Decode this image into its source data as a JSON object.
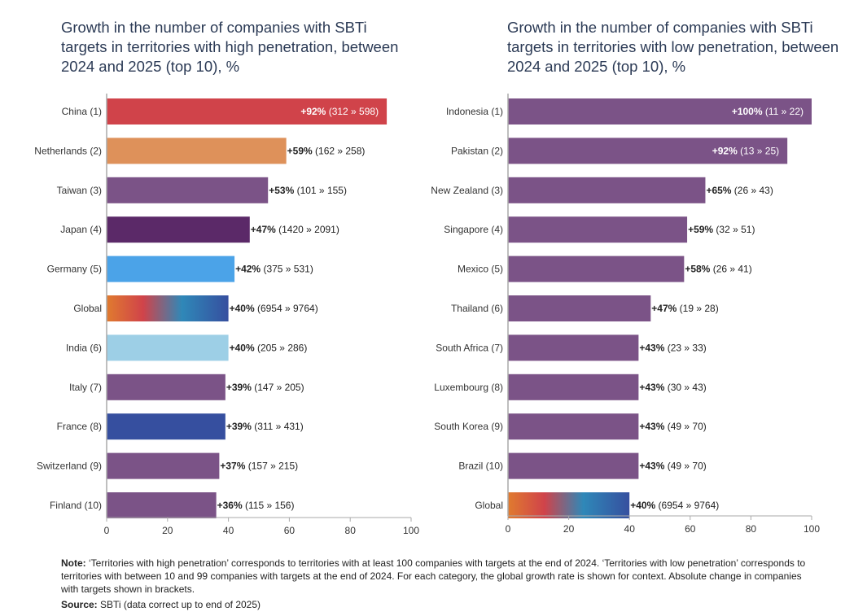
{
  "chart_data": [
    {
      "type": "bar",
      "orientation": "horizontal",
      "title": "Growth in the number of companies with SBTi targets in territories with high penetration, between 2024 and 2025 (top 10), %",
      "xlabel": "",
      "ylabel": "",
      "xlim": [
        0,
        100
      ],
      "xticks": [
        0,
        20,
        40,
        60,
        80,
        100
      ],
      "grid": false,
      "categories": [
        "China (1)",
        "Netherlands (2)",
        "Taiwan (3)",
        "Japan (4)",
        "Germany (5)",
        "Global",
        "India (6)",
        "Italy (7)",
        "France (8)",
        "Switzerland (9)",
        "Finland (10)"
      ],
      "values": [
        92,
        59,
        53,
        47,
        42,
        40,
        40,
        39,
        39,
        37,
        36
      ],
      "labels_pct": [
        "+92%",
        "+59%",
        "+53%",
        "+47%",
        "+42%",
        "+40%",
        "+40%",
        "+39%",
        "+39%",
        "+37%",
        "+36%"
      ],
      "labels_abs": [
        "(312 » 598)",
        "(162 » 258)",
        "(101 » 155)",
        "(1420 » 2091)",
        "(375 » 531)",
        "(6954 » 9764)",
        "(205 » 286)",
        "(147 » 205)",
        "(311 » 431)",
        "(157 » 215)",
        "(115 » 156)"
      ],
      "colors": [
        "#d0434a",
        "#de915a",
        "#7b5387",
        "#5b2968",
        "#4ba3e8",
        "gradient",
        "#9dcfe6",
        "#7b5387",
        "#364f9f",
        "#7b5387",
        "#7b5387"
      ],
      "label_inside": [
        true,
        false,
        false,
        false,
        false,
        false,
        false,
        false,
        false,
        false,
        false
      ]
    },
    {
      "type": "bar",
      "orientation": "horizontal",
      "title": "Growth in the number of companies with SBTi targets in territories with low penetration, between 2024 and 2025 (top 10), %",
      "xlabel": "",
      "ylabel": "",
      "xlim": [
        0,
        100
      ],
      "xticks": [
        0,
        20,
        40,
        60,
        80,
        100
      ],
      "grid": false,
      "categories": [
        "Indonesia (1)",
        "Pakistan (2)",
        "New Zealand (3)",
        "Singapore (4)",
        "Mexico (5)",
        "Thailand (6)",
        "South Africa (7)",
        "Luxembourg (8)",
        "South Korea (9)",
        "Brazil (10)",
        "Global"
      ],
      "values": [
        100,
        92,
        65,
        59,
        58,
        47,
        43,
        43,
        43,
        43,
        40
      ],
      "labels_pct": [
        "+100%",
        "+92%",
        "+65%",
        "+59%",
        "+58%",
        "+47%",
        "+43%",
        "+43%",
        "+43%",
        "+43%",
        "+40%"
      ],
      "labels_abs": [
        "(11 » 22)",
        "(13 » 25)",
        "(26 » 43)",
        "(32 » 51)",
        "(26 » 41)",
        "(19 » 28)",
        "(23 » 33)",
        "(30 » 43)",
        "(49 » 70)",
        "(49 » 70)",
        "(6954 » 9764)"
      ],
      "colors": [
        "#7b5387",
        "#7b5387",
        "#7b5387",
        "#7b5387",
        "#7b5387",
        "#7b5387",
        "#7b5387",
        "#7b5387",
        "#7b5387",
        "#7b5387",
        "gradient"
      ],
      "label_inside": [
        true,
        true,
        false,
        false,
        false,
        false,
        false,
        false,
        false,
        false,
        false
      ]
    }
  ],
  "gradient_colors": [
    "#e07b2f",
    "#d0434a",
    "#2f88b8",
    "#364f9f"
  ],
  "notes": {
    "note_label": "Note:",
    "note_text": " ‘Territories with high penetration’ corresponds to territories with at least 100 companies with targets at the end of 2024. ‘Territories with low penetration’ corresponds to territories with between 10 and 99 companies with targets at the end of 2024. For each category, the global growth rate is shown for context. Absolute change in companies with targets shown in brackets.",
    "source_label": "Source:",
    "source_text": " SBTi (data correct up to end of 2025)"
  }
}
